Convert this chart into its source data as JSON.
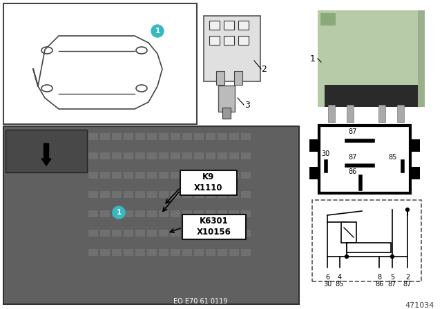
{
  "bg_color": "#ffffff",
  "relay_green": "#b8cba8",
  "teal_circle": "#3ab8c0",
  "photo_bg": "#707070",
  "part_number": "471034",
  "eo_number": "EO E70 61 0119",
  "label1_line1": "K9",
  "label1_line2": "X1110",
  "label2_line1": "K6301",
  "label2_line2": "X10156",
  "pin_top_labels": [
    "6",
    "4",
    "8",
    "5",
    "2"
  ],
  "pin_bot_labels": [
    "30",
    "85",
    "86",
    "87",
    "87"
  ],
  "relay_box_pins": [
    "87",
    "30",
    "87",
    "85",
    "86"
  ]
}
